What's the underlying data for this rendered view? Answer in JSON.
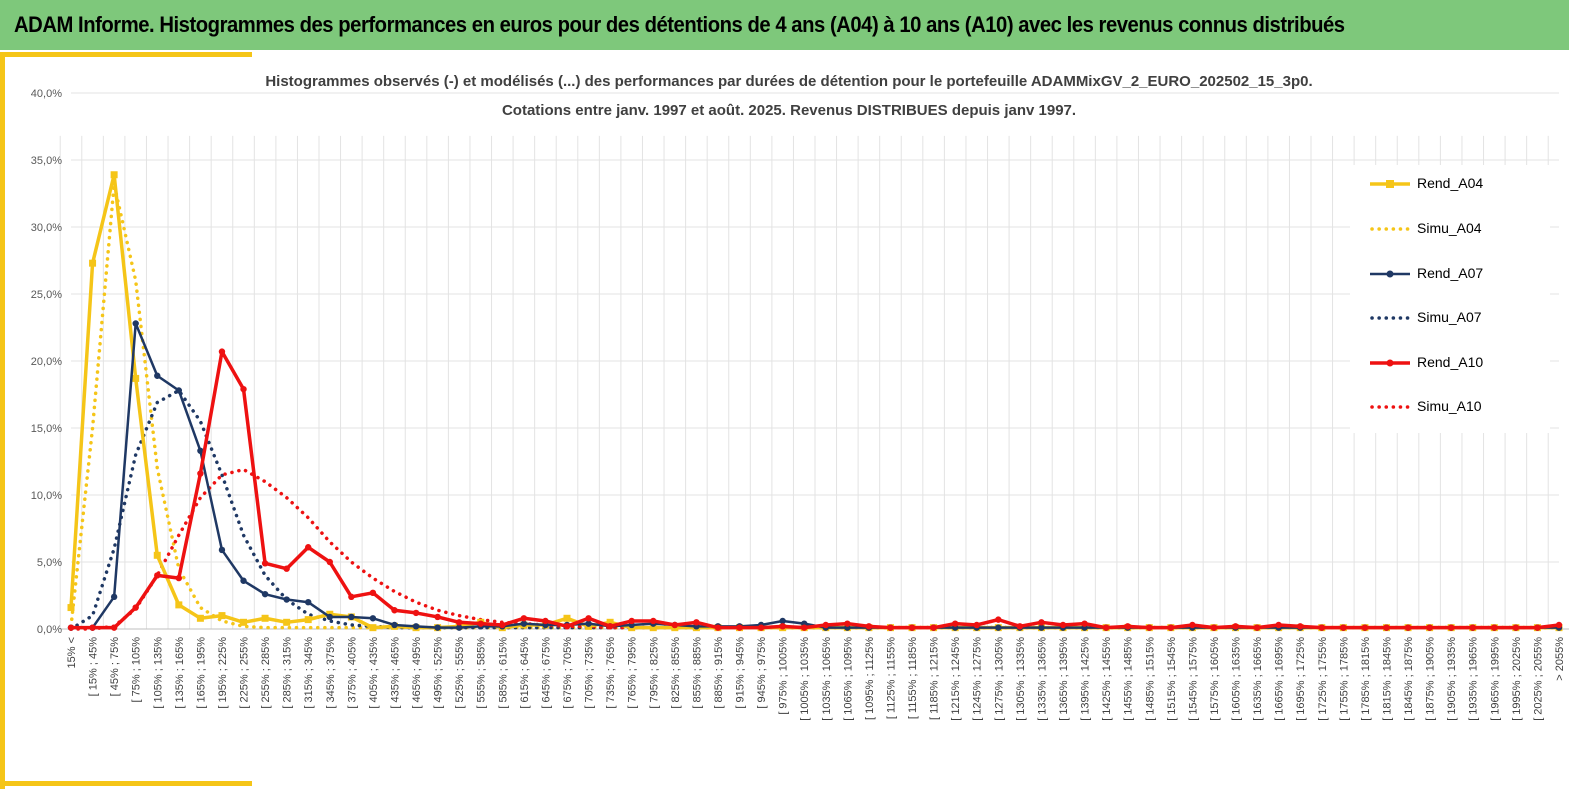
{
  "header": {
    "title": "ADAM Informe. Histogrammes des performances en euros pour des détentions de 4 ans (A04) à 10 ans (A10) avec les revenus connus distribués"
  },
  "colors": {
    "banner": "#7ec87b",
    "accent": "#f5c518",
    "a04": "#f5c518",
    "a07": "#1f3864",
    "a10": "#ee1111",
    "grid": "#e3e3e3"
  },
  "chart_data": {
    "type": "line",
    "title_lines": [
      "Histogrammes observés (-) et modélisés (...) des performances par durées de détention pour le portefeuille ADAMMixGV_2_EURO_202502_15_3p0.",
      "Cotations entre janv. 1997 et août. 2025. Revenus DISTRIBUES depuis janv 1997."
    ],
    "xlabel": "",
    "ylabel": "",
    "ylim": [
      0,
      40
    ],
    "y_ticks": [
      "0,0%",
      "5,0%",
      "10,0%",
      "15,0%",
      "20,0%",
      "25,0%",
      "30,0%",
      "35,0%",
      "40,0%"
    ],
    "grid": true,
    "legend_position": "right",
    "categories": [
      "15% <",
      "[ 15% ; 45%",
      "[ 45% ; 75%",
      "[ 75% ; 105%",
      "[ 105% ; 135%",
      "[ 135% ; 165%",
      "[ 165% ; 195%",
      "[ 195% ; 225%",
      "[ 225% ; 255%",
      "[ 255% ; 285%",
      "[ 285% ; 315%",
      "[ 315% ; 345%",
      "[ 345% ; 375%",
      "[ 375% ; 405%",
      "[ 405% ; 435%",
      "[ 435% ; 465%",
      "[ 465% ; 495%",
      "[ 495% ; 525%",
      "[ 525% ; 555%",
      "[ 555% ; 585%",
      "[ 585% ; 615%",
      "[ 615% ; 645%",
      "[ 645% ; 675%",
      "[ 675% ; 705%",
      "[ 705% ; 735%",
      "[ 735% ; 765%",
      "[ 765% ; 795%",
      "[ 795% ; 825%",
      "[ 825% ; 855%",
      "[ 855% ; 885%",
      "[ 885% ; 915%",
      "[ 915% ; 945%",
      "[ 945% ; 975%",
      "[ 975% ; 1005%",
      "[ 1005% ; 1035%",
      "[ 1035% ; 1065%",
      "[ 1065% ; 1095%",
      "[ 1095% ; 1125%",
      "[ 1125% ; 1155%",
      "[ 1155% ; 1185%",
      "[ 1185% ; 1215%",
      "[ 1215% ; 1245%",
      "[ 1245% ; 1275%",
      "[ 1275% ; 1305%",
      "[ 1305% ; 1335%",
      "[ 1335% ; 1365%",
      "[ 1365% ; 1395%",
      "[ 1395% ; 1425%",
      "[ 1425% ; 1455%",
      "[ 1455% ; 1485%",
      "[ 1485% ; 1515%",
      "[ 1515% ; 1545%",
      "[ 1545% ; 1575%",
      "[ 1575% ; 1605%",
      "[ 1605% ; 1635%",
      "[ 1635% ; 1665%",
      "[ 1665% ; 1695%",
      "[ 1695% ; 1725%",
      "[ 1725% ; 1755%",
      "[ 1755% ; 1785%",
      "[ 1785% ; 1815%",
      "[ 1815% ; 1845%",
      "[ 1845% ; 1875%",
      "[ 1875% ; 1905%",
      "[ 1905% ; 1935%",
      "[ 1935% ; 1965%",
      "[ 1965% ; 1995%",
      "[ 1995% ; 2025%",
      "[ 2025% ; 2055%",
      "> 2055%"
    ],
    "series": [
      {
        "name": "Rend_A04",
        "style": "solid",
        "marker": "square",
        "color": "#f5c518",
        "values": [
          1.6,
          27.3,
          33.9,
          18.7,
          5.5,
          1.8,
          0.8,
          1.0,
          0.5,
          0.8,
          0.5,
          0.7,
          1.1,
          0.9,
          0.1,
          0.2,
          0.1,
          0.1,
          0.2,
          0.5,
          0.1,
          0.3,
          0.3,
          0.8,
          0.2,
          0.5,
          0.1,
          0.1,
          0.1,
          0.1,
          0.1,
          0.1,
          0.1,
          0.1,
          0.1,
          0.1,
          0.1,
          0.1,
          0.1,
          0.1,
          0.1,
          0.1,
          0.1,
          0.1,
          0.1,
          0.1,
          0.1,
          0.1,
          0.1,
          0.1,
          0.1,
          0.1,
          0.1,
          0.1,
          0.1,
          0.1,
          0.1,
          0.1,
          0.1,
          0.1,
          0.1,
          0.1,
          0.1,
          0.1,
          0.1,
          0.1,
          0.1,
          0.1,
          0.1,
          0.1
        ]
      },
      {
        "name": "Simu_A04",
        "style": "dotted",
        "marker": "none",
        "color": "#f5c518",
        "values": [
          0.2,
          15.0,
          33.2,
          26.0,
          12.0,
          4.5,
          1.6,
          0.6,
          0.2,
          0.1,
          0.1,
          0.1,
          0.1,
          0.1,
          0.1,
          0.1,
          0.1,
          0.1,
          0.1,
          0.1,
          0.1,
          0.1,
          0.1,
          0.1,
          0.1,
          0.1,
          0.1,
          0.1,
          0.1,
          0.1,
          0.1,
          0.1,
          0.1,
          0.1,
          0.1,
          0.1,
          0.1,
          0.1,
          0.1,
          0.1,
          0.1,
          0.1,
          0.1,
          0.1,
          0.1,
          0.1,
          0.1,
          0.1,
          0.1,
          0.1,
          0.1,
          0.1,
          0.1,
          0.1,
          0.1,
          0.1,
          0.1,
          0.1,
          0.1,
          0.1,
          0.1,
          0.1,
          0.1,
          0.1,
          0.1,
          0.1,
          0.1,
          0.1,
          0.1,
          0.1
        ]
      },
      {
        "name": "Rend_A07",
        "style": "solid",
        "marker": "circle",
        "color": "#1f3864",
        "values": [
          0.1,
          0.1,
          2.4,
          22.8,
          18.9,
          17.8,
          13.3,
          5.9,
          3.6,
          2.6,
          2.2,
          2.0,
          0.9,
          0.9,
          0.8,
          0.3,
          0.2,
          0.1,
          0.1,
          0.2,
          0.2,
          0.4,
          0.3,
          0.3,
          0.4,
          0.2,
          0.3,
          0.4,
          0.3,
          0.2,
          0.2,
          0.2,
          0.3,
          0.6,
          0.4,
          0.1,
          0.1,
          0.1,
          0.1,
          0.1,
          0.1,
          0.1,
          0.1,
          0.1,
          0.1,
          0.1,
          0.1,
          0.1,
          0.1,
          0.1,
          0.1,
          0.1,
          0.1,
          0.1,
          0.1,
          0.1,
          0.1,
          0.1,
          0.1,
          0.1,
          0.1,
          0.1,
          0.1,
          0.1,
          0.1,
          0.1,
          0.1,
          0.1,
          0.1,
          0.1
        ]
      },
      {
        "name": "Simu_A07",
        "style": "dotted",
        "marker": "none",
        "color": "#1f3864",
        "values": [
          0.0,
          1.0,
          6.0,
          13.0,
          16.9,
          17.8,
          15.5,
          11.5,
          7.0,
          4.0,
          2.2,
          1.1,
          0.6,
          0.3,
          0.2,
          0.1,
          0.1,
          0.1,
          0.1,
          0.1,
          0.1,
          0.1,
          0.1,
          0.1,
          0.1,
          0.1,
          0.1,
          0.1,
          0.1,
          0.1,
          0.1,
          0.1,
          0.1,
          0.1,
          0.1,
          0.1,
          0.1,
          0.1,
          0.1,
          0.1,
          0.1,
          0.1,
          0.1,
          0.1,
          0.1,
          0.1,
          0.1,
          0.1,
          0.1,
          0.1,
          0.1,
          0.1,
          0.1,
          0.1,
          0.1,
          0.1,
          0.1,
          0.1,
          0.1,
          0.1,
          0.1,
          0.1,
          0.1,
          0.1,
          0.1,
          0.1,
          0.1,
          0.1,
          0.1,
          0.1
        ]
      },
      {
        "name": "Rend_A10",
        "style": "solid",
        "marker": "circle",
        "color": "#ee1111",
        "values": [
          0.1,
          0.1,
          0.1,
          1.6,
          4.0,
          3.8,
          11.6,
          20.7,
          17.9,
          4.9,
          4.5,
          6.1,
          5.0,
          2.4,
          2.7,
          1.4,
          1.2,
          0.9,
          0.5,
          0.4,
          0.3,
          0.8,
          0.6,
          0.2,
          0.8,
          0.2,
          0.6,
          0.6,
          0.3,
          0.5,
          0.1,
          0.1,
          0.1,
          0.2,
          0.1,
          0.3,
          0.4,
          0.2,
          0.1,
          0.1,
          0.1,
          0.4,
          0.3,
          0.7,
          0.2,
          0.5,
          0.3,
          0.4,
          0.1,
          0.2,
          0.1,
          0.1,
          0.3,
          0.1,
          0.2,
          0.1,
          0.3,
          0.2,
          0.1,
          0.1,
          0.1,
          0.1,
          0.1,
          0.1,
          0.1,
          0.1,
          0.1,
          0.1,
          0.1,
          0.3
        ]
      },
      {
        "name": "Simu_A10",
        "style": "dotted",
        "marker": "none",
        "color": "#ee1111",
        "values": [
          0.0,
          0.0,
          0.2,
          1.5,
          4.0,
          7.0,
          9.8,
          11.5,
          11.9,
          11.0,
          9.8,
          8.3,
          6.5,
          5.0,
          3.8,
          2.8,
          2.0,
          1.4,
          1.0,
          0.7,
          0.5,
          0.4,
          0.3,
          0.2,
          0.2,
          0.1,
          0.1,
          0.1,
          0.1,
          0.1,
          0.1,
          0.1,
          0.1,
          0.1,
          0.1,
          0.1,
          0.1,
          0.1,
          0.1,
          0.1,
          0.1,
          0.1,
          0.1,
          0.1,
          0.1,
          0.1,
          0.1,
          0.1,
          0.1,
          0.1,
          0.1,
          0.1,
          0.1,
          0.1,
          0.1,
          0.1,
          0.1,
          0.1,
          0.1,
          0.1,
          0.1,
          0.1,
          0.1,
          0.1,
          0.1,
          0.1,
          0.1,
          0.1,
          0.1,
          0.1
        ]
      }
    ]
  }
}
